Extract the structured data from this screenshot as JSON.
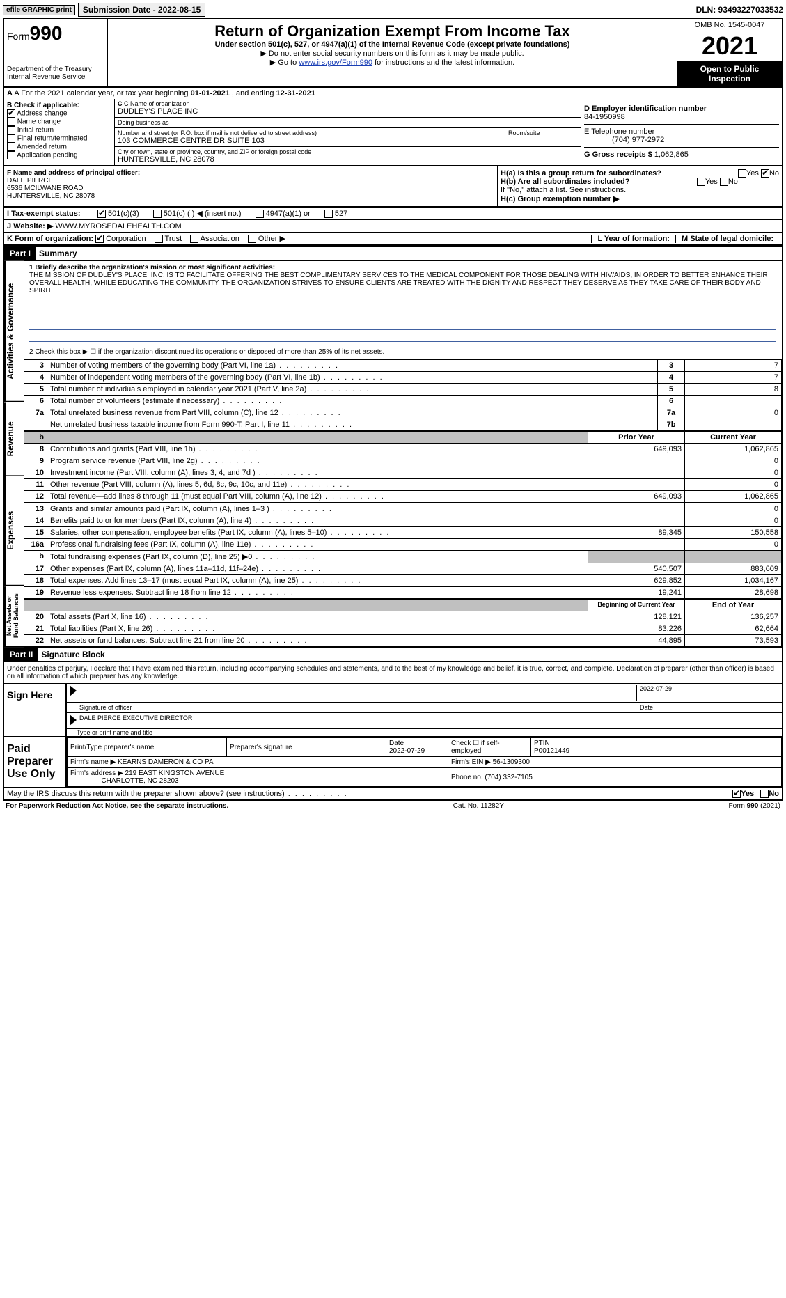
{
  "topbar": {
    "efile": "efile GRAPHIC print",
    "submission_label": "Submission Date - 2022-08-15",
    "dln": "DLN: 93493227033532"
  },
  "header": {
    "form_label": "Form",
    "form_no": "990",
    "dept": "Department of the Treasury Internal Revenue Service",
    "title": "Return of Organization Exempt From Income Tax",
    "subtitle": "Under section 501(c), 527, or 4947(a)(1) of the Internal Revenue Code (except private foundations)",
    "line1": "▶ Do not enter social security numbers on this form as it may be made public.",
    "line2_pre": "▶ Go to ",
    "line2_link": "www.irs.gov/Form990",
    "line2_post": " for instructions and the latest information.",
    "omb": "OMB No. 1545-0047",
    "year": "2021",
    "open": "Open to Public Inspection"
  },
  "rowA": {
    "text_pre": "A For the 2021 calendar year, or tax year beginning ",
    "begin": "01-01-2021",
    "mid": " , and ending ",
    "end": "12-31-2021"
  },
  "sectionB": {
    "label": "B Check if applicable:",
    "items": [
      {
        "label": "Address change",
        "checked": true
      },
      {
        "label": "Name change",
        "checked": false
      },
      {
        "label": "Initial return",
        "checked": false
      },
      {
        "label": "Final return/terminated",
        "checked": false
      },
      {
        "label": "Amended return",
        "checked": false
      },
      {
        "label": "Application pending",
        "checked": false
      }
    ]
  },
  "sectionC": {
    "name_label": "C Name of organization",
    "name": "DUDLEY'S PLACE INC",
    "dba_label": "Doing business as",
    "dba": "",
    "addr_label": "Number and street (or P.O. box if mail is not delivered to street address)",
    "room_label": "Room/suite",
    "addr": "103 COMMERCE CENTRE DR SUITE 103",
    "city_label": "City or town, state or province, country, and ZIP or foreign postal code",
    "city": "HUNTERSVILLE, NC  28078"
  },
  "sectionD": {
    "ein_label": "D Employer identification number",
    "ein": "84-1950998",
    "phone_label": "E Telephone number",
    "phone": "(704) 977-2972",
    "gross_label": "G Gross receipts $",
    "gross": "1,062,865"
  },
  "sectionF": {
    "label": "F Name and address of principal officer:",
    "name": "DALE PIERCE",
    "addr1": "6536 MCILWANE ROAD",
    "addr2": "HUNTERSVILLE, NC  28078"
  },
  "sectionH": {
    "ha": "H(a)  Is this a group return for subordinates?",
    "ha_yes": "Yes",
    "ha_no": "No",
    "ha_checked": "No",
    "hb": "H(b)  Are all subordinates included?",
    "hb_note": "If \"No,\" attach a list. See instructions.",
    "hc": "H(c)  Group exemption number ▶"
  },
  "rowI": {
    "label": "I  Tax-exempt status:",
    "opts": [
      "501(c)(3)",
      "501(c) (  ) ◀ (insert no.)",
      "4947(a)(1) or",
      "527"
    ],
    "checked_idx": 0
  },
  "rowJ": {
    "label": "J  Website: ▶",
    "value": "WWW.MYROSEDALEHEALTH.COM"
  },
  "rowK": {
    "label": "K Form of organization:",
    "opts": [
      "Corporation",
      "Trust",
      "Association",
      "Other ▶"
    ],
    "checked_idx": 0,
    "l_label": "L Year of formation:",
    "l_val": "",
    "m_label": "M State of legal domicile:",
    "m_val": ""
  },
  "part1": {
    "header": "Part I",
    "title": "Summary",
    "line1_label": "1  Briefly describe the organization's mission or most significant activities:",
    "mission": "THE MISSION OF DUDLEY'S PLACE, INC. IS TO FACILITATE OFFERING THE BEST COMPLIMENTARY SERVICES TO THE MEDICAL COMPONENT FOR THOSE DEALING WITH HIV/AIDS, IN ORDER TO BETTER ENHANCE THEIR OVERALL HEALTH, WHILE EDUCATING THE COMMUNITY. THE ORGANIZATION STRIVES TO ENSURE CLIENTS ARE TREATED WITH THE DIGNITY AND RESPECT THEY DESERVE AS THEY TAKE CARE OF THEIR BODY AND SPIRIT.",
    "line2": "2   Check this box ▶ ☐ if the organization discontinued its operations or disposed of more than 25% of its net assets."
  },
  "governance": {
    "vtab": "Activities & Governance",
    "rows": [
      {
        "n": "3",
        "label": "Number of voting members of the governing body (Part VI, line 1a)",
        "box": "3",
        "val": "7"
      },
      {
        "n": "4",
        "label": "Number of independent voting members of the governing body (Part VI, line 1b)",
        "box": "4",
        "val": "7"
      },
      {
        "n": "5",
        "label": "Total number of individuals employed in calendar year 2021 (Part V, line 2a)",
        "box": "5",
        "val": "8"
      },
      {
        "n": "6",
        "label": "Total number of volunteers (estimate if necessary)",
        "box": "6",
        "val": ""
      },
      {
        "n": "7a",
        "label": "Total unrelated business revenue from Part VIII, column (C), line 12",
        "box": "7a",
        "val": "0"
      },
      {
        "n": "",
        "label": "Net unrelated business taxable income from Form 990-T, Part I, line 11",
        "box": "7b",
        "val": ""
      }
    ]
  },
  "revenue": {
    "vtab": "Revenue",
    "header_prior": "Prior Year",
    "header_current": "Current Year",
    "rows": [
      {
        "n": "8",
        "label": "Contributions and grants (Part VIII, line 1h)",
        "prior": "649,093",
        "cur": "1,062,865"
      },
      {
        "n": "9",
        "label": "Program service revenue (Part VIII, line 2g)",
        "prior": "",
        "cur": "0"
      },
      {
        "n": "10",
        "label": "Investment income (Part VIII, column (A), lines 3, 4, and 7d )",
        "prior": "",
        "cur": "0"
      },
      {
        "n": "11",
        "label": "Other revenue (Part VIII, column (A), lines 5, 6d, 8c, 9c, 10c, and 11e)",
        "prior": "",
        "cur": "0"
      },
      {
        "n": "12",
        "label": "Total revenue—add lines 8 through 11 (must equal Part VIII, column (A), line 12)",
        "prior": "649,093",
        "cur": "1,062,865"
      }
    ]
  },
  "expenses": {
    "vtab": "Expenses",
    "rows": [
      {
        "n": "13",
        "label": "Grants and similar amounts paid (Part IX, column (A), lines 1–3 )",
        "prior": "",
        "cur": "0"
      },
      {
        "n": "14",
        "label": "Benefits paid to or for members (Part IX, column (A), line 4)",
        "prior": "",
        "cur": "0"
      },
      {
        "n": "15",
        "label": "Salaries, other compensation, employee benefits (Part IX, column (A), lines 5–10)",
        "prior": "89,345",
        "cur": "150,558"
      },
      {
        "n": "16a",
        "label": "Professional fundraising fees (Part IX, column (A), line 11e)",
        "prior": "",
        "cur": "0"
      },
      {
        "n": "b",
        "label": "Total fundraising expenses (Part IX, column (D), line 25) ▶0",
        "prior": "grey",
        "cur": "grey"
      },
      {
        "n": "17",
        "label": "Other expenses (Part IX, column (A), lines 11a–11d, 11f–24e)",
        "prior": "540,507",
        "cur": "883,609"
      },
      {
        "n": "18",
        "label": "Total expenses. Add lines 13–17 (must equal Part IX, column (A), line 25)",
        "prior": "629,852",
        "cur": "1,034,167"
      },
      {
        "n": "19",
        "label": "Revenue less expenses. Subtract line 18 from line 12",
        "prior": "19,241",
        "cur": "28,698"
      }
    ]
  },
  "netassets": {
    "vtab": "Net Assets or Fund Balances",
    "header_begin": "Beginning of Current Year",
    "header_end": "End of Year",
    "rows": [
      {
        "n": "20",
        "label": "Total assets (Part X, line 16)",
        "prior": "128,121",
        "cur": "136,257"
      },
      {
        "n": "21",
        "label": "Total liabilities (Part X, line 26)",
        "prior": "83,226",
        "cur": "62,664"
      },
      {
        "n": "22",
        "label": "Net assets or fund balances. Subtract line 21 from line 20",
        "prior": "44,895",
        "cur": "73,593"
      }
    ]
  },
  "part2": {
    "header": "Part II",
    "title": "Signature Block",
    "declaration": "Under penalties of perjury, I declare that I have examined this return, including accompanying schedules and statements, and to the best of my knowledge and belief, it is true, correct, and complete. Declaration of preparer (other than officer) is based on all information of which preparer has any knowledge.",
    "sign_here": "Sign Here",
    "sig_officer_label": "Signature of officer",
    "sig_date": "2022-07-29",
    "sig_date_label": "Date",
    "officer_name": "DALE PIERCE EXECUTIVE DIRECTOR",
    "officer_label": "Type or print name and title",
    "paid": "Paid Preparer Use Only",
    "prep_name_label": "Print/Type preparer's name",
    "prep_sig_label": "Preparer's signature",
    "prep_date_label": "Date",
    "prep_date": "2022-07-29",
    "check_self": "Check ☐ if self-employed",
    "ptin_label": "PTIN",
    "ptin": "P00121449",
    "firm_name_label": "Firm's name    ▶",
    "firm_name": "KEARNS DAMERON & CO PA",
    "firm_ein_label": "Firm's EIN ▶",
    "firm_ein": "56-1309300",
    "firm_addr_label": "Firm's address ▶",
    "firm_addr": "219 EAST KINGSTON AVENUE",
    "firm_city": "CHARLOTTE, NC  28203",
    "firm_phone_label": "Phone no.",
    "firm_phone": "(704) 332-7105",
    "discuss": "May the IRS discuss this return with the preparer shown above? (see instructions)",
    "discuss_yes": "Yes",
    "discuss_no": "No",
    "discuss_checked": "Yes"
  },
  "footer": {
    "left": "For Paperwork Reduction Act Notice, see the separate instructions.",
    "mid": "Cat. No. 11282Y",
    "right": "Form 990 (2021)"
  },
  "colors": {
    "link": "#1a3fb5",
    "black": "#000000",
    "grey": "#c0c0c0"
  }
}
